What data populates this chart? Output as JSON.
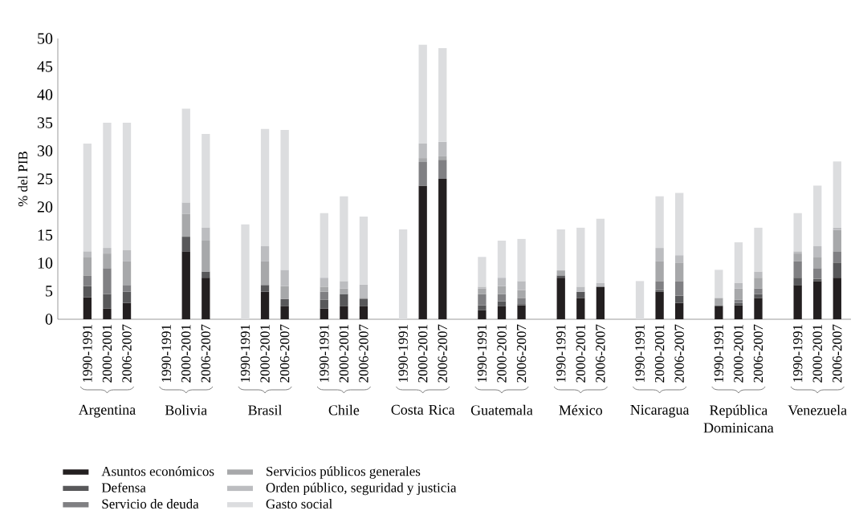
{
  "chart_data": {
    "type": "bar",
    "stacked": true,
    "ylabel": "% del PIB",
    "ylim": [
      0,
      50
    ],
    "yticks": [
      0,
      5,
      10,
      15,
      20,
      25,
      30,
      35,
      40,
      45,
      50
    ],
    "legend": "bottom",
    "categories": [
      "1990-1991",
      "2000-2001",
      "2006-2007",
      "1990-1991",
      "2000-2001",
      "2006-2007",
      "1990-1991",
      "2000-2001",
      "2006-2007",
      "1990-1991",
      "2000-2001",
      "2006-2007",
      "1990-1991",
      "2000-2001",
      "2006-2007",
      "1990-1991",
      "2000-2001",
      "2006-2007",
      "1990-1991",
      "2000-2001",
      "2006-2007",
      "1990-1991",
      "2000-2001",
      "2006-2007",
      "1990-1991",
      "2000-2001",
      "2006-2007",
      "1990-1991",
      "2000-2001",
      "2006-2007"
    ],
    "annotations": [
      "Argentina",
      "Bolivia",
      "Brasil",
      "Chile",
      "Costa Rica",
      "Guatemala",
      "México",
      "Nicaragua",
      "República Dominicana",
      "Venezuela"
    ],
    "series": [
      {
        "name": "Asuntos económicos",
        "color": "#231f20",
        "values": [
          3.9,
          1.9,
          2.9,
          null,
          12.1,
          7.4,
          null,
          4.9,
          2.3,
          1.9,
          2.3,
          2.3,
          null,
          23.8,
          25.0,
          1.6,
          2.3,
          2.5,
          7.4,
          3.8,
          5.8,
          null,
          4.9,
          2.9,
          2.3,
          2.5,
          3.8,
          6.1,
          6.8,
          7.4
        ]
      },
      {
        "name": "Defensa",
        "color": "#58585a",
        "values": [
          2.0,
          2.6,
          2.0,
          null,
          2.6,
          1.1,
          null,
          1.2,
          1.3,
          1.6,
          2.2,
          1.3,
          null,
          0,
          0,
          0.9,
          0.9,
          0.2,
          0.4,
          1.1,
          0,
          null,
          0.3,
          1.3,
          0.2,
          0.4,
          0.7,
          1.3,
          0.4,
          2.7
        ]
      },
      {
        "name": "Servicio de deuda",
        "color": "#808083",
        "values": [
          1.9,
          4.6,
          1.2,
          null,
          0,
          0,
          null,
          0,
          0,
          1.4,
          0,
          0.2,
          null,
          4.2,
          3.4,
          2.0,
          1.3,
          1.1,
          0,
          0,
          0,
          null,
          1.6,
          2.6,
          0,
          0.6,
          1.0,
          2.9,
          1.9,
          2.0
        ]
      },
      {
        "name": "Servicios públicos generales",
        "color": "#a7a8aa",
        "values": [
          3.2,
          2.6,
          4.2,
          null,
          4.1,
          5.5,
          null,
          4.2,
          2.3,
          0.9,
          1.0,
          0,
          null,
          0.7,
          0.7,
          1.0,
          1.4,
          1.4,
          0.9,
          0,
          0,
          null,
          3.5,
          3.3,
          1.3,
          2.0,
          1.9,
          1.4,
          1.9,
          3.8
        ]
      },
      {
        "name": "Orden público, seguridad y justicia",
        "color": "#bcbdc0",
        "values": [
          1.1,
          1.0,
          2.0,
          null,
          2.0,
          2.3,
          null,
          2.7,
          2.9,
          1.6,
          1.3,
          2.4,
          null,
          2.6,
          2.5,
          0.3,
          1.5,
          1.6,
          0,
          0.9,
          0.7,
          null,
          2.4,
          1.3,
          0,
          1.0,
          1.1,
          0.4,
          2.0,
          0.4
        ]
      },
      {
        "name": "Gasto social",
        "color": "#dcdddf",
        "values": [
          19.2,
          22.3,
          22.7,
          null,
          16.7,
          16.7,
          16.9,
          20.9,
          24.9,
          11.5,
          15.1,
          12.1,
          16.0,
          17.6,
          16.7,
          5.3,
          6.6,
          7.5,
          7.3,
          10.5,
          11.4,
          6.8,
          9.2,
          11.1,
          5.0,
          7.2,
          7.8,
          6.8,
          10.8,
          11.8
        ]
      }
    ]
  }
}
